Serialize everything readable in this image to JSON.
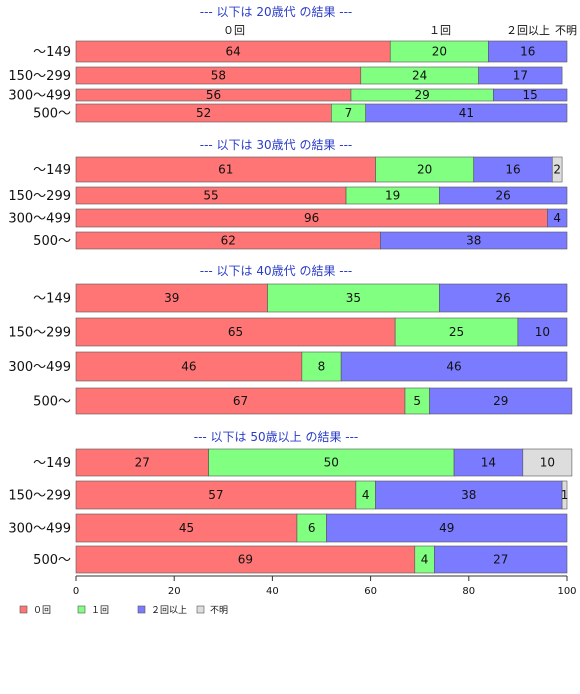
{
  "colors": {
    "c0": "#ff7575",
    "c1": "#80ff80",
    "c2": "#7b7bff",
    "c3": "#dddddd"
  },
  "column_headers": [
    "０回",
    "１回",
    "２回以上",
    "不明"
  ],
  "chart_data": {
    "type": "bar",
    "orientation": "horizontal",
    "stacked": true,
    "series": [
      "０回",
      "１回",
      "２回以上",
      "不明"
    ],
    "xlim": [
      0,
      100
    ],
    "xticks": [
      0,
      20,
      40,
      60,
      80,
      100
    ],
    "legend": "bottom-left",
    "panels": [
      {
        "title": "--- 以下は 20歳代 の結果 ---",
        "categories": [
          "～149",
          "150～299",
          "300～499",
          "500～"
        ],
        "rows": [
          [
            64,
            20,
            16,
            0
          ],
          [
            58,
            24,
            17,
            0
          ],
          [
            56,
            29,
            15,
            0
          ],
          [
            52,
            7,
            41,
            0
          ]
        ]
      },
      {
        "title": "--- 以下は 30歳代 の結果 ---",
        "categories": [
          "～149",
          "150～299",
          "300～499",
          "500～"
        ],
        "rows": [
          [
            61,
            20,
            16,
            2
          ],
          [
            55,
            19,
            26,
            0
          ],
          [
            96,
            0,
            4,
            0
          ],
          [
            62,
            0,
            38,
            0
          ]
        ]
      },
      {
        "title": "--- 以下は 40歳代 の結果 ---",
        "categories": [
          "～149",
          "150～299",
          "300～499",
          "500～"
        ],
        "rows": [
          [
            39,
            35,
            26,
            0
          ],
          [
            65,
            25,
            10,
            0
          ],
          [
            46,
            8,
            46,
            0
          ],
          [
            67,
            5,
            29,
            0
          ]
        ]
      },
      {
        "title": "--- 以下は 50歳以上 の結果 ---",
        "categories": [
          "～149",
          "150～299",
          "300～499",
          "500～"
        ],
        "rows": [
          [
            27,
            50,
            14,
            10
          ],
          [
            57,
            4,
            38,
            1
          ],
          [
            45,
            6,
            49,
            0
          ],
          [
            69,
            4,
            27,
            0
          ]
        ]
      }
    ]
  }
}
